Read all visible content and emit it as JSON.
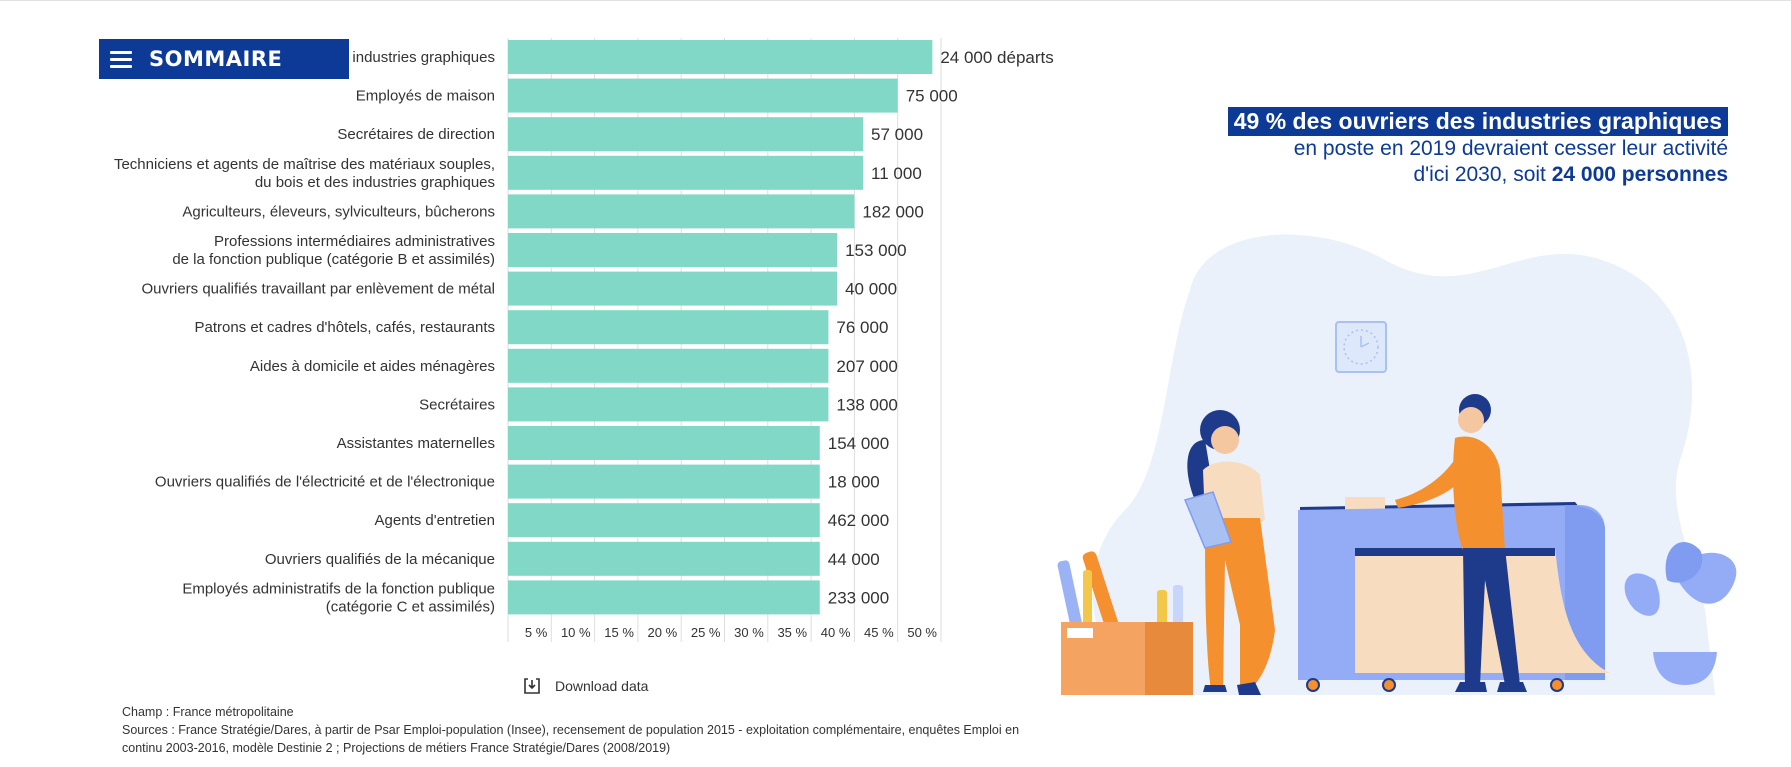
{
  "sommaire": {
    "label": "SOMMAIRE"
  },
  "chart_data": {
    "type": "bar",
    "orientation": "horizontal",
    "x_unit": "%",
    "xlim": [
      0,
      52
    ],
    "ticks": [
      "5 %",
      "10 %",
      "15 %",
      "20 %",
      "25 %",
      "30 %",
      "35 %",
      "40 %",
      "45 %",
      "50 %"
    ],
    "tick_values": [
      5,
      10,
      15,
      20,
      25,
      30,
      35,
      40,
      45,
      50
    ],
    "grid": true,
    "bar_color": "#82d8c6",
    "categories": [
      {
        "lines": [
          "Ouvriers des industries graphiques"
        ],
        "value": 49,
        "label": "24 000 départs"
      },
      {
        "lines": [
          "Employés de maison"
        ],
        "value": 45,
        "label": "75 000"
      },
      {
        "lines": [
          "Secrétaires de direction"
        ],
        "value": 41,
        "label": "57 000"
      },
      {
        "lines": [
          "Techniciens et agents de maîtrise des matériaux souples,",
          "du bois et des industries graphiques"
        ],
        "value": 41,
        "label": "11 000"
      },
      {
        "lines": [
          "Agriculteurs, éleveurs, sylviculteurs, bûcherons"
        ],
        "value": 40,
        "label": "182 000"
      },
      {
        "lines": [
          "Professions intermédiaires administratives",
          "de la fonction publique (catégorie B et assimilés)"
        ],
        "value": 38,
        "label": "153 000"
      },
      {
        "lines": [
          "Ouvriers qualifiés travaillant par enlèvement de métal"
        ],
        "value": 38,
        "label": "40 000"
      },
      {
        "lines": [
          "Patrons et cadres d'hôtels, cafés, restaurants"
        ],
        "value": 37,
        "label": "76 000"
      },
      {
        "lines": [
          "Aides à domicile et aides ménagères"
        ],
        "value": 37,
        "label": "207 000"
      },
      {
        "lines": [
          "Secrétaires"
        ],
        "value": 37,
        "label": "138 000"
      },
      {
        "lines": [
          "Assistantes maternelles"
        ],
        "value": 36,
        "label": "154 000"
      },
      {
        "lines": [
          "Ouvriers qualifiés de l'électricité et de l'électronique"
        ],
        "value": 36,
        "label": "18 000"
      },
      {
        "lines": [
          "Agents d'entretien"
        ],
        "value": 36,
        "label": "462 000"
      },
      {
        "lines": [
          "Ouvriers qualifiés de la mécanique"
        ],
        "value": 36,
        "label": "44 000"
      },
      {
        "lines": [
          "Employés administratifs de la fonction publique",
          "(catégorie C et assimilés)"
        ],
        "value": 36,
        "label": "233 000"
      }
    ]
  },
  "download": {
    "label": "Download data"
  },
  "notes": {
    "champ": "Champ : France métropolitaine",
    "sources_1": "Sources : France Stratégie/Dares, à partir de Psar Emploi-population (Insee), recensement de population 2015 - exploitation complémentaire, enquêtes Emploi en",
    "sources_2": "continu 2003-2016, modèle Destinie 2 ; Projections de métiers France Stratégie/Dares (2008/2019)"
  },
  "headline": {
    "line1": "49 % des ouvriers des industries graphiques",
    "line2": "en poste en 2019 devraient cesser leur activité",
    "line3_prefix": "d'ici 2030, soit ",
    "line3_bold": "24 000 personnes"
  },
  "illustration": {
    "blob_color": "#eaf1fb",
    "accent_orange": "#f5902f",
    "accent_navy": "#1e3a8a",
    "accent_blue": "#94acf6"
  }
}
